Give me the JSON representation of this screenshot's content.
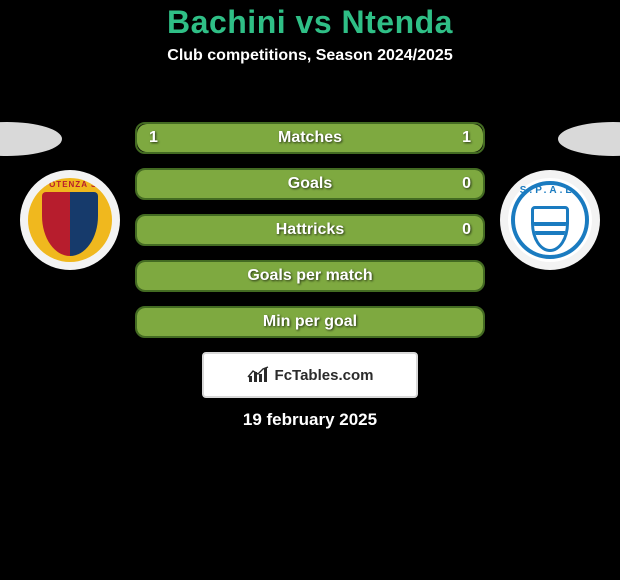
{
  "title": {
    "text": "Bachini vs Ntenda",
    "color": "#2fbf86",
    "fontsize": 32
  },
  "subtitle": {
    "text": "Club competitions, Season 2024/2025",
    "fontsize": 16
  },
  "side_ovals": {
    "left_color": "#d9d9d9",
    "right_color": "#d9d9d9"
  },
  "badges": {
    "left": {
      "bg_color": "#f3f3f3",
      "crest_arc_text": "POTENZA S",
      "ring_color": "#f0b81e",
      "shield_left_color": "#b71d2d",
      "shield_right_color": "#163a6b"
    },
    "right": {
      "bg_color": "#f3f3f3",
      "text": "S.P.A.L.",
      "ring_color": "#1a7bc0"
    }
  },
  "bars": {
    "border_color": "#436b22",
    "left_fill_color": "#7ea940",
    "right_fill_color": "#7ea940",
    "label_fontsize": 16,
    "value_fontsize": 16,
    "items": [
      {
        "label": "Matches",
        "left": "1",
        "right": "1",
        "left_pct": 50,
        "right_pct": 50
      },
      {
        "label": "Goals",
        "left": "",
        "right": "0",
        "left_pct": 100,
        "right_pct": 0
      },
      {
        "label": "Hattricks",
        "left": "",
        "right": "0",
        "left_pct": 100,
        "right_pct": 0
      },
      {
        "label": "Goals per match",
        "left": "",
        "right": "",
        "left_pct": 100,
        "right_pct": 0
      },
      {
        "label": "Min per goal",
        "left": "",
        "right": "",
        "left_pct": 100,
        "right_pct": 0
      }
    ]
  },
  "footer": {
    "brand_text": "FcTables.com",
    "brand_fontsize": 15,
    "icon_color": "#2b2b2b"
  },
  "date": {
    "text": "19 february 2025",
    "fontsize": 17
  }
}
